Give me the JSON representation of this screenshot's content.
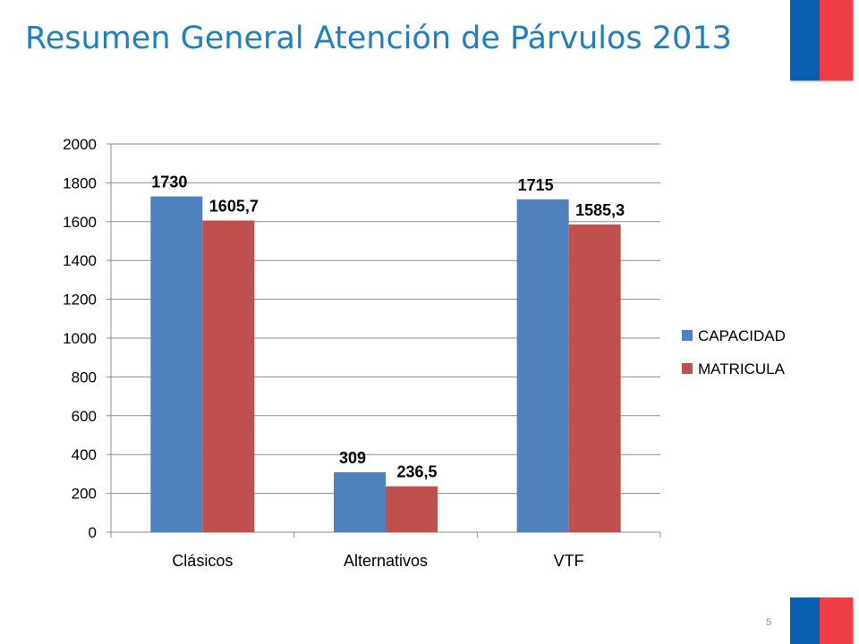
{
  "slide": {
    "title": "Resumen General Atención  de Párvulos 2013",
    "page_number": "5"
  },
  "colors": {
    "title": "#1f7fc1",
    "flag_blue": "#0a5fb0",
    "flag_red": "#ee3e44"
  },
  "chart_data": {
    "type": "bar",
    "title": "",
    "xlabel": "",
    "ylabel": "",
    "categories": [
      "Clásicos",
      "Alternativos",
      "VTF"
    ],
    "series": [
      {
        "name": "CAPACIDAD",
        "color": "#4f81bd",
        "values": [
          1730,
          309,
          1715
        ],
        "labels": [
          "1730",
          "309",
          "1715"
        ]
      },
      {
        "name": "MATRICULA",
        "color": "#c0504d",
        "values": [
          1605.7,
          236.5,
          1585.3
        ],
        "labels": [
          "1605,7",
          "236,5",
          "1585,3"
        ]
      }
    ],
    "ylim": [
      0,
      2000
    ],
    "yticks": [
      "0",
      "200",
      "400",
      "600",
      "800",
      "1000",
      "1200",
      "1400",
      "1600",
      "1800",
      "2000"
    ],
    "grid": true,
    "legend": "right"
  }
}
